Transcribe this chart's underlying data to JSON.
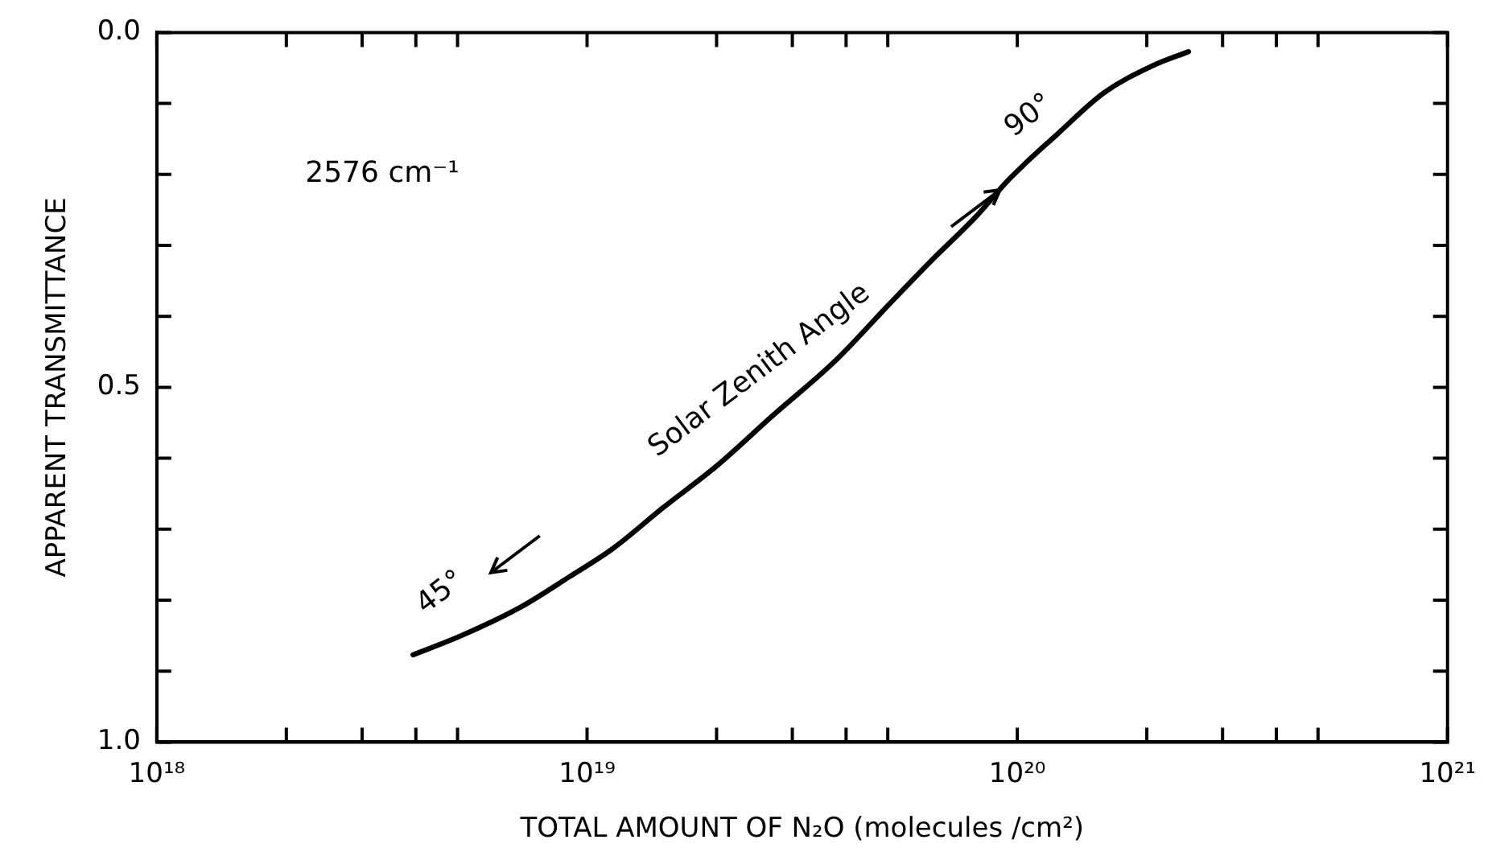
{
  "chart_data": {
    "type": "line",
    "xlabel": "TOTAL AMOUNT OF N₂O (molecules /cm²)",
    "ylabel": "APPARENT TRANSMITTANCE",
    "log": "x",
    "color": "#000000",
    "x": [
      3.94e+18,
      5.1e+18,
      7e+18,
      9.1e+18,
      1.15e+19,
      1.5e+19,
      2e+19,
      2.7e+19,
      3.8e+19,
      5e+19,
      6.3e+19,
      8e+19,
      9.6e+19,
      1.24e+20,
      1.59e+20,
      2.06e+20,
      2.5e+20
    ],
    "values": [
      0.877,
      0.85,
      0.81,
      0.767,
      0.727,
      0.67,
      0.611,
      0.54,
      0.461,
      0.385,
      0.322,
      0.26,
      0.206,
      0.143,
      0.085,
      0.047,
      0.027
    ],
    "xlim": [
      1e+18,
      1e+21
    ],
    "xticks": [
      {
        "value": 1e+18,
        "label": "10¹⁸"
      },
      {
        "value": 2e+18,
        "label": null
      },
      {
        "value": 3e+18,
        "label": null
      },
      {
        "value": 4e+18,
        "label": null
      },
      {
        "value": 5e+18,
        "label": null
      },
      {
        "value": 1e+19,
        "label": "10¹⁹"
      },
      {
        "value": 2e+19,
        "label": null
      },
      {
        "value": 3e+19,
        "label": null
      },
      {
        "value": 4e+19,
        "label": null
      },
      {
        "value": 5e+19,
        "label": null
      },
      {
        "value": 1e+20,
        "label": "10²⁰"
      },
      {
        "value": 2e+20,
        "label": null
      },
      {
        "value": 3e+20,
        "label": null
      },
      {
        "value": 4e+20,
        "label": null
      },
      {
        "value": 5e+20,
        "label": null
      },
      {
        "value": 1e+21,
        "label": "10²¹"
      }
    ],
    "ylim": [
      1,
      0
    ],
    "yticks": [
      {
        "value": 0,
        "label": "0.0"
      },
      {
        "value": 0.1,
        "label": null
      },
      {
        "value": 0.2,
        "label": null
      },
      {
        "value": 0.3,
        "label": null
      },
      {
        "value": 0.4,
        "label": null
      },
      {
        "value": 0.5,
        "label": "0.5"
      },
      {
        "value": 0.6,
        "label": null
      },
      {
        "value": 0.7,
        "label": null
      },
      {
        "value": 0.8,
        "label": null
      },
      {
        "value": 0.9,
        "label": null
      },
      {
        "value": 1,
        "label": "1.0"
      }
    ],
    "annotations": [
      "2576 cm⁻¹",
      "45°",
      "Solar Zenith Angle",
      "90°"
    ]
  }
}
